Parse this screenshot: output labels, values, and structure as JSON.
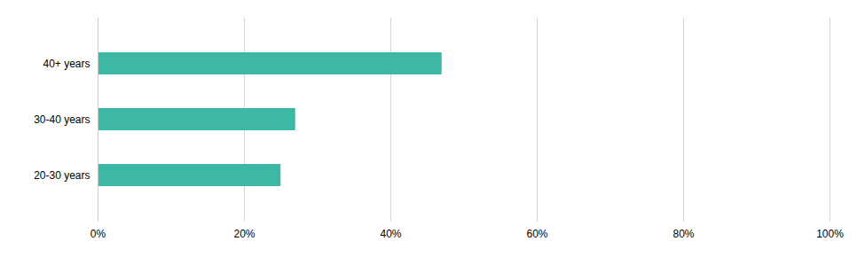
{
  "chart_data": {
    "type": "bar",
    "orientation": "horizontal",
    "categories": [
      "40+ years",
      "30-40 years",
      "20-30 years"
    ],
    "values": [
      47,
      27,
      25
    ],
    "color": "#3db8a5",
    "xlim": [
      0,
      100
    ],
    "xticks": [
      {
        "value": 0,
        "label": "0%"
      },
      {
        "value": 20,
        "label": "20%"
      },
      {
        "value": 40,
        "label": "40%"
      },
      {
        "value": 60,
        "label": "60%"
      },
      {
        "value": 80,
        "label": "80%"
      },
      {
        "value": 100,
        "label": "100%"
      }
    ],
    "grid": true
  }
}
